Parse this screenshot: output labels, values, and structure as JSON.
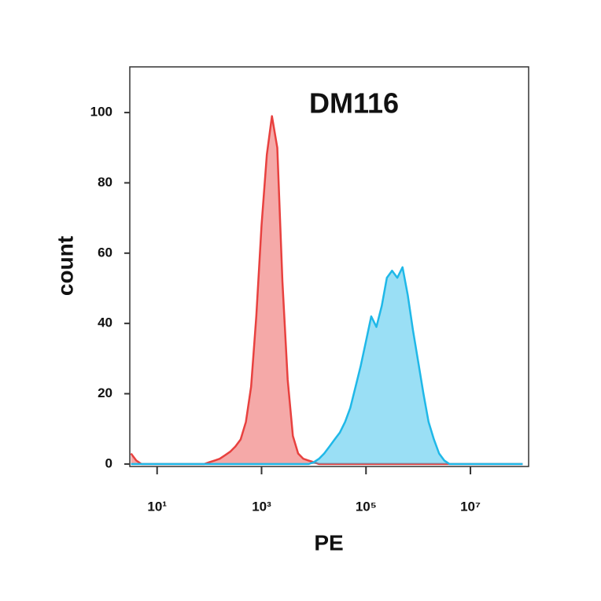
{
  "chart_data": {
    "type": "histogram-overlay",
    "title": "DM116",
    "xlabel": "PE",
    "ylabel": "count",
    "xscale": "log",
    "grid": false,
    "xlim": [
      3,
      130000000
    ],
    "ylim": [
      -0.7,
      113
    ],
    "xticks": [
      {
        "value": 10,
        "label": "10¹"
      },
      {
        "value": 1000,
        "label": "10³"
      },
      {
        "value": 100000,
        "label": "10⁵"
      },
      {
        "value": 10000000,
        "label": "10⁷"
      }
    ],
    "yticks": [
      0,
      20,
      40,
      60,
      80,
      100
    ],
    "x": [
      3.16,
      3.98,
      5.01,
      6.31,
      7.94,
      10,
      12.6,
      15.8,
      20,
      25.1,
      31.6,
      39.8,
      50.1,
      63.1,
      79.4,
      100,
      126,
      158,
      200,
      251,
      316,
      398,
      501,
      631,
      794,
      1000,
      1260,
      1580,
      2000,
      2510,
      3160,
      3980,
      5010,
      6310,
      7940,
      10000,
      12600,
      15800,
      20000,
      25100,
      31600,
      39800,
      50100,
      63100,
      79400,
      100000,
      126000,
      158000,
      200000,
      251000,
      316000,
      398000,
      501000,
      631000,
      794000,
      1000000,
      1260000,
      1580000,
      2000000,
      2510000,
      3160000,
      3980000,
      5010000,
      6310000,
      7940000,
      10000000,
      12600000,
      15800000,
      20000000,
      25100000,
      31600000,
      39800000,
      50100000,
      63100000,
      79400000,
      100000000
    ],
    "series": [
      {
        "color": "#e8413f",
        "values": [
          3,
          1,
          0,
          0,
          0,
          0,
          0,
          0,
          0,
          0,
          0,
          0,
          0,
          0,
          0,
          0.5,
          1,
          1.5,
          2.5,
          3.5,
          5,
          7,
          12,
          22,
          42,
          68,
          88,
          99,
          90,
          52,
          24,
          8,
          3,
          1.5,
          1,
          0.5,
          0,
          0,
          0,
          0,
          0,
          0,
          0,
          0,
          0,
          0,
          0,
          0,
          0,
          0,
          0,
          0,
          0,
          0,
          0,
          0,
          0,
          0,
          0,
          0,
          0,
          0,
          0,
          0,
          0,
          0,
          0,
          0,
          0,
          0,
          0,
          0,
          0,
          0,
          0,
          0
        ]
      },
      {
        "color": "#1fb8e8",
        "values": [
          0,
          0,
          0,
          0,
          0,
          0,
          0,
          0,
          0,
          0,
          0,
          0,
          0,
          0,
          0,
          0,
          0,
          0,
          0,
          0,
          0,
          0,
          0,
          0,
          0,
          0,
          0,
          0,
          0,
          0,
          0,
          0,
          0,
          0,
          0,
          0.5,
          1.5,
          3,
          5,
          7,
          9,
          12,
          16,
          22,
          28,
          35,
          42,
          39,
          45,
          53,
          55,
          53,
          56,
          48,
          38,
          29,
          20,
          12,
          7,
          3,
          1,
          0,
          0,
          0,
          0,
          0,
          0,
          0,
          0,
          0,
          0,
          0,
          0,
          0,
          0,
          0
        ]
      }
    ]
  }
}
